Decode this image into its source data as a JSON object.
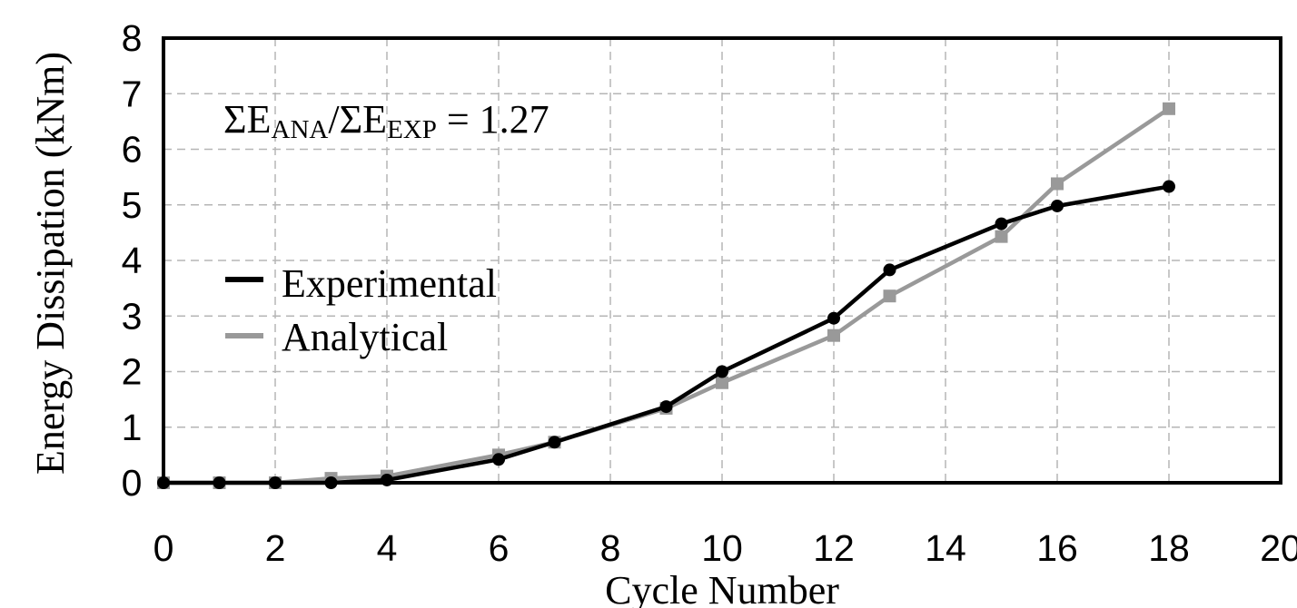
{
  "chart_data": {
    "type": "line",
    "title": "",
    "xlabel": "Cycle Number",
    "ylabel": "Energy Dissipation (kNm)",
    "xlim": [
      0,
      20
    ],
    "ylim": [
      0,
      8
    ],
    "xticks": [
      "0",
      "2",
      "4",
      "6",
      "8",
      "10",
      "12",
      "14",
      "16",
      "18",
      "20"
    ],
    "yticks": [
      "0",
      "1",
      "2",
      "3",
      "4",
      "5",
      "6",
      "7",
      "8"
    ],
    "grid": true,
    "legend_position": "left",
    "annotation": {
      "sigma1": "ΣE",
      "sub1": "ANA",
      "slash": "/ΣE",
      "sub2": "EXP",
      "rest": " = 1.27"
    },
    "series": [
      {
        "name": "Experimental",
        "color": "#000000",
        "marker": "circle",
        "x": [
          0,
          1,
          2,
          3,
          4,
          6,
          7,
          9,
          10,
          12,
          13,
          15,
          16,
          18
        ],
        "y": [
          0,
          0,
          0,
          0.0,
          0.05,
          0.42,
          0.73,
          1.37,
          2.0,
          2.96,
          3.83,
          4.66,
          4.98,
          5.33
        ]
      },
      {
        "name": "Analytical",
        "color": "#999999",
        "marker": "square",
        "x": [
          0,
          1,
          2,
          3,
          4,
          6,
          7,
          9,
          10,
          12,
          13,
          15,
          16,
          18
        ],
        "y": [
          0,
          0,
          0,
          0.08,
          0.12,
          0.5,
          0.73,
          1.34,
          1.8,
          2.65,
          3.36,
          4.43,
          5.38,
          6.73
        ]
      }
    ]
  }
}
